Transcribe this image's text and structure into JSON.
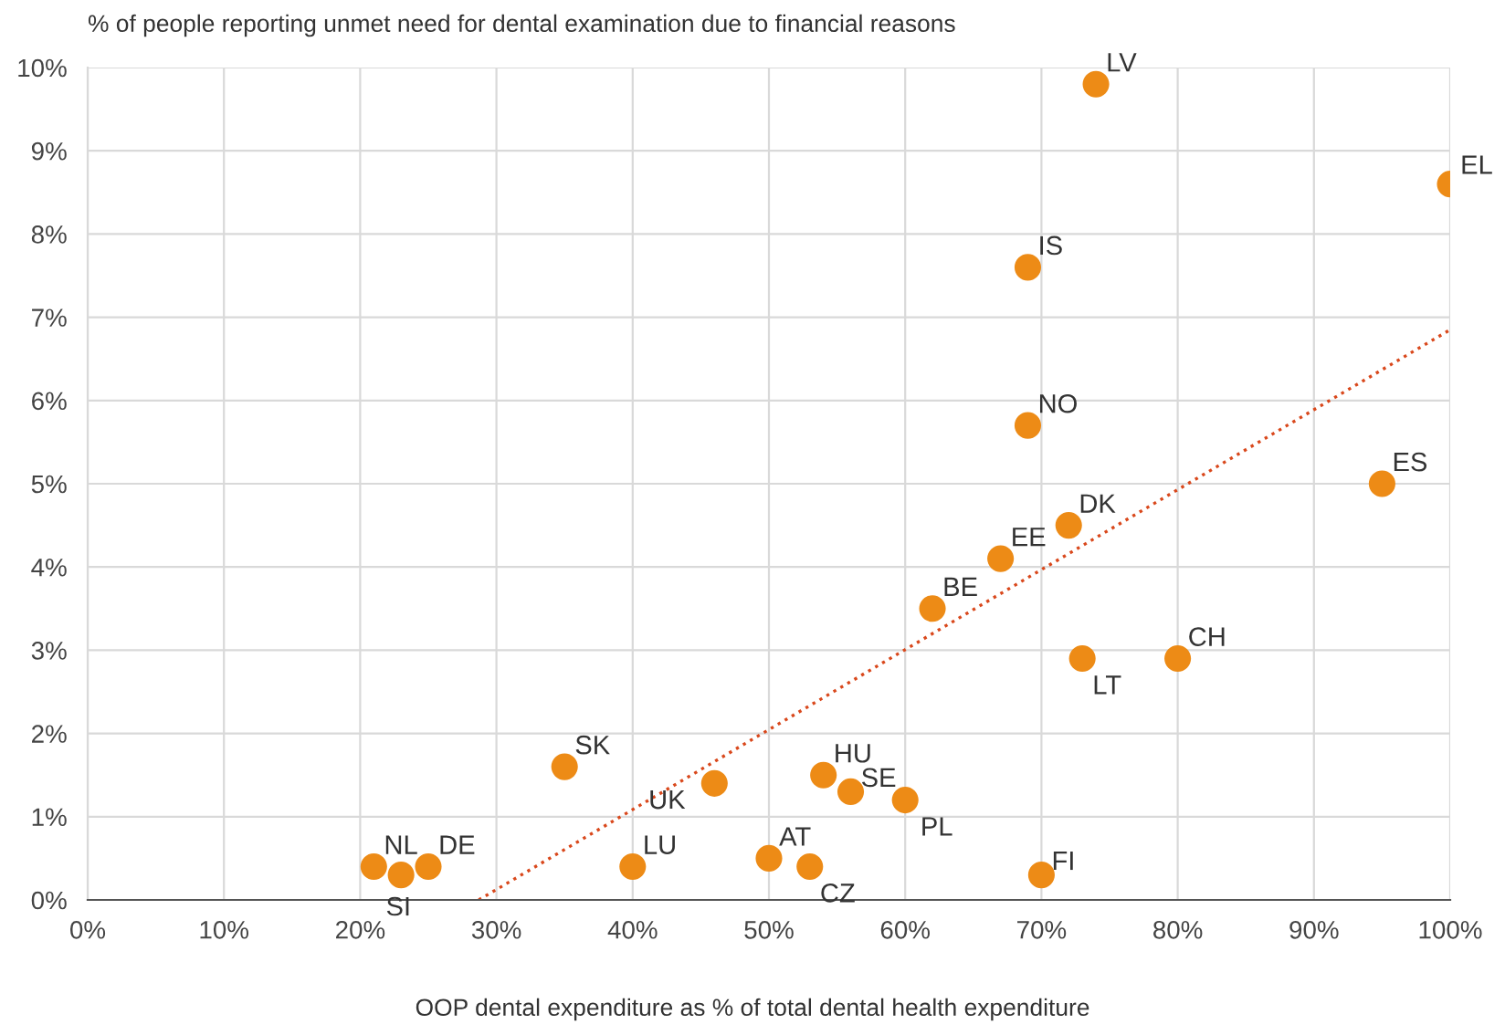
{
  "chart_data": {
    "type": "scatter",
    "ylabel": "% of people reporting unmet need for dental examination due to financial reasons",
    "xlabel": "OOP dental expenditure as % of total dental health expenditure",
    "series": [
      {
        "color": "#ed8b16",
        "marker": "circle",
        "x": [
          74,
          100,
          69,
          69,
          95,
          72,
          67,
          62,
          80,
          73,
          35,
          46,
          54,
          56,
          60,
          50,
          53,
          70,
          40,
          21,
          23,
          25
        ],
        "values": [
          9.8,
          8.6,
          7.6,
          5.7,
          5.0,
          4.5,
          4.1,
          3.5,
          2.9,
          2.9,
          1.6,
          1.4,
          1.5,
          1.3,
          1.2,
          0.5,
          0.4,
          0.3,
          0.4,
          0.4,
          0.3,
          0.4
        ]
      },
      {
        "type": "line",
        "color": "#d9481c",
        "line_style": "dotted",
        "x": [
          28.7,
          100
        ],
        "values": [
          0,
          6.85
        ]
      }
    ],
    "annotations": [
      {
        "text": "LV",
        "x": 74,
        "y": 9.8
      },
      {
        "text": "EL",
        "x": 100,
        "y": 8.6
      },
      {
        "text": "IS",
        "x": 69,
        "y": 7.6
      },
      {
        "text": "NO",
        "x": 69,
        "y": 5.7
      },
      {
        "text": "ES",
        "x": 95,
        "y": 5.0
      },
      {
        "text": "DK",
        "x": 72,
        "y": 4.5
      },
      {
        "text": "EE",
        "x": 67,
        "y": 4.1
      },
      {
        "text": "BE",
        "x": 62,
        "y": 3.5
      },
      {
        "text": "CH",
        "x": 80,
        "y": 2.9
      },
      {
        "text": "LT",
        "x": 73,
        "y": 2.9
      },
      {
        "text": "SK",
        "x": 35,
        "y": 1.6
      },
      {
        "text": "UK",
        "x": 46,
        "y": 1.4
      },
      {
        "text": "HU",
        "x": 54,
        "y": 1.5
      },
      {
        "text": "SE",
        "x": 56,
        "y": 1.3
      },
      {
        "text": "PL",
        "x": 60,
        "y": 1.2
      },
      {
        "text": "AT",
        "x": 50,
        "y": 0.5
      },
      {
        "text": "CZ",
        "x": 53,
        "y": 0.4
      },
      {
        "text": "FI",
        "x": 70,
        "y": 0.3
      },
      {
        "text": "LU",
        "x": 40,
        "y": 0.4
      },
      {
        "text": "NL",
        "x": 21,
        "y": 0.4
      },
      {
        "text": "SI",
        "x": 23,
        "y": 0.3
      },
      {
        "text": "DE",
        "x": 25,
        "y": 0.4
      }
    ],
    "xlim": [
      0,
      100
    ],
    "xticks": [
      {
        "value": 0,
        "label": "0%"
      },
      {
        "value": 10,
        "label": "10%"
      },
      {
        "value": 20,
        "label": "20%"
      },
      {
        "value": 30,
        "label": "30%"
      },
      {
        "value": 40,
        "label": "40%"
      },
      {
        "value": 50,
        "label": "50%"
      },
      {
        "value": 60,
        "label": "60%"
      },
      {
        "value": 70,
        "label": "70%"
      },
      {
        "value": 80,
        "label": "80%"
      },
      {
        "value": 90,
        "label": "90%"
      },
      {
        "value": 100,
        "label": "100%"
      }
    ],
    "ylim": [
      0,
      10
    ],
    "yticks": [
      {
        "value": 0,
        "label": "0%"
      },
      {
        "value": 1,
        "label": "1%"
      },
      {
        "value": 2,
        "label": "2%"
      },
      {
        "value": 3,
        "label": "3%"
      },
      {
        "value": 4,
        "label": "4%"
      },
      {
        "value": 5,
        "label": "5%"
      },
      {
        "value": 6,
        "label": "6%"
      },
      {
        "value": 7,
        "label": "7%"
      },
      {
        "value": 8,
        "label": "8%"
      },
      {
        "value": 9,
        "label": "9%"
      },
      {
        "value": 10,
        "label": "10%"
      }
    ],
    "grid": true
  }
}
